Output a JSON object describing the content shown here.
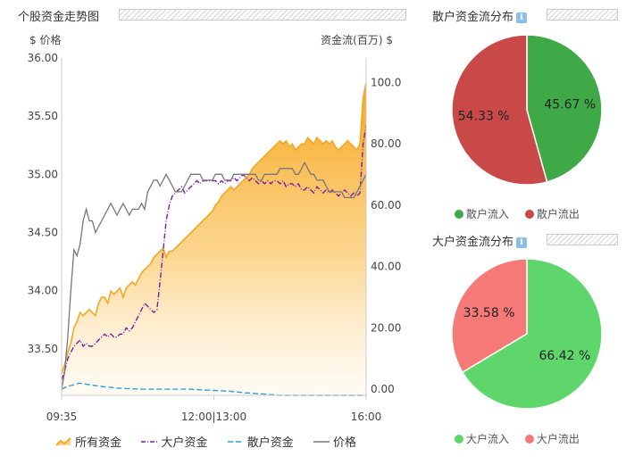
{
  "headers": {
    "main": "个股资金走势图",
    "pie1": "散户资金流分布",
    "pie2": "大户资金流分布",
    "info_glyph": "i"
  },
  "chart_data": [
    {
      "type": "area",
      "ylabel_left": "$ 价格",
      "ylabel_right": "资金流(百万) $",
      "left_axis": {
        "min": 33.1,
        "max": 36.0,
        "ticks": [
          "36.00",
          "35.50",
          "35.00",
          "34.50",
          "34.00",
          "33.50"
        ],
        "tick_values": [
          36.0,
          35.5,
          35.0,
          34.5,
          34.0,
          33.5
        ]
      },
      "right_axis": {
        "min": -2,
        "max": 108,
        "ticks": [
          "100.00",
          "80.00",
          "60.00",
          "40.00",
          "20.00",
          "0.00"
        ],
        "tick_values": [
          100,
          80,
          60,
          40,
          20,
          0
        ]
      },
      "x_ticks": [
        "09:35",
        "12:00|13:00",
        "16:00"
      ],
      "x_tick_pos": [
        0,
        0.5,
        1
      ],
      "grid": false,
      "legend_position": "bottom",
      "series": [
        {
          "name": "所有资金",
          "axis": "right",
          "color": "#f5a623",
          "style": "area",
          "values": [
            5,
            8,
            12,
            15,
            20,
            22,
            25,
            24,
            25,
            26,
            25,
            24,
            28,
            30,
            30,
            28,
            32,
            31,
            32,
            33,
            30,
            33,
            34,
            35,
            34,
            36,
            38,
            39,
            40,
            41,
            43,
            44,
            45,
            46,
            43,
            45,
            45,
            46,
            47,
            48,
            49,
            50,
            51,
            52,
            53,
            54,
            55,
            56,
            57,
            58,
            60,
            61,
            63,
            64,
            65,
            66,
            65,
            66,
            67,
            68,
            69,
            70,
            72,
            73,
            74,
            75,
            76,
            77,
            78,
            79,
            80,
            81,
            80,
            81,
            79,
            80,
            78,
            79,
            80,
            80,
            82,
            81,
            80,
            82,
            81,
            80,
            81,
            80,
            81,
            79,
            78,
            79,
            80,
            81,
            80,
            79,
            78,
            80,
            95,
            100
          ]
        },
        {
          "name": "大户资金",
          "axis": "right",
          "color": "#7b1fa2",
          "style": "dashdot",
          "values": [
            3,
            6,
            10,
            12,
            14,
            15,
            16,
            14,
            15,
            14,
            14,
            15,
            16,
            17,
            18,
            17,
            18,
            17,
            17,
            18,
            18,
            20,
            19,
            20,
            22,
            24,
            26,
            28,
            27,
            26,
            25,
            26,
            35,
            45,
            55,
            60,
            63,
            64,
            65,
            66,
            64,
            65,
            66,
            67,
            68,
            67,
            68,
            68,
            68,
            68,
            68,
            67,
            68,
            67,
            68,
            68,
            69,
            68,
            69,
            70,
            69,
            68,
            69,
            68,
            67,
            68,
            67,
            68,
            67,
            68,
            68,
            67,
            68,
            66,
            67,
            67,
            66,
            67,
            65,
            65,
            66,
            65,
            64,
            66,
            65,
            64,
            65,
            64,
            65,
            64,
            63,
            64,
            65,
            64,
            63,
            64,
            63,
            64,
            80,
            86
          ]
        },
        {
          "name": "散户资金",
          "axis": "right",
          "color": "#29a3d6",
          "style": "dashed",
          "values": [
            0,
            0.5,
            1,
            1.2,
            1.5,
            1.8,
            2,
            1.8,
            1.6,
            1.5,
            1.3,
            1.2,
            1,
            0.9,
            0.8,
            0.7,
            0.6,
            0.5,
            0.4,
            0.3,
            0.3,
            0.2,
            0.2,
            0.1,
            0.1,
            0.1,
            0,
            0,
            0,
            0,
            0,
            0,
            0,
            0,
            0,
            0,
            0,
            0,
            0,
            0,
            0,
            0,
            0,
            -0.1,
            -0.1,
            -0.2,
            -0.2,
            -0.3,
            -0.3,
            -0.4,
            -0.4,
            -0.5,
            -0.5,
            -0.6,
            -0.6,
            -0.7,
            -0.8,
            -0.9,
            -1,
            -1.1,
            -1.2,
            -1.2,
            -1.3,
            -1.4,
            -1.5,
            -1.5,
            -1.6,
            -1.7,
            -1.8,
            -1.8,
            -1.9,
            -2,
            -2,
            -2,
            -2,
            -2,
            -2,
            -2,
            -2,
            -2,
            -2,
            -2,
            -2,
            -2,
            -2,
            -2,
            -2,
            -2,
            -2,
            -2,
            -2,
            -2,
            -2,
            -2,
            -2,
            -2,
            -2,
            -2,
            -2,
            -2
          ]
        },
        {
          "name": "价格",
          "axis": "left",
          "color": "#777777",
          "style": "solid",
          "values": [
            33.15,
            33.3,
            33.6,
            34.0,
            34.35,
            34.3,
            34.4,
            34.6,
            34.7,
            34.6,
            34.6,
            34.5,
            34.55,
            34.6,
            34.65,
            34.7,
            34.75,
            34.7,
            34.65,
            34.7,
            34.75,
            34.7,
            34.65,
            34.7,
            34.7,
            34.7,
            34.75,
            34.7,
            34.85,
            34.9,
            34.95,
            34.95,
            34.9,
            34.95,
            35.0,
            34.95,
            34.9,
            34.85,
            34.85,
            34.85,
            34.9,
            34.95,
            35.0,
            35.0,
            35.0,
            35.0,
            34.95,
            34.95,
            34.95,
            34.95,
            35.0,
            35.0,
            35.0,
            34.95,
            34.95,
            34.95,
            35.0,
            35.0,
            35.0,
            35.0,
            35.0,
            35.0,
            35.0,
            35.0,
            34.95,
            34.95,
            35.0,
            35.0,
            35.0,
            35.0,
            35.0,
            35.05,
            35.05,
            35.05,
            35.05,
            35.05,
            35.0,
            35.0,
            35.05,
            35.1,
            35.05,
            35.0,
            35.0,
            34.95,
            34.95,
            34.95,
            34.9,
            34.85,
            34.85,
            34.85,
            34.85,
            34.85,
            34.8,
            34.8,
            34.8,
            34.8,
            34.85,
            34.9,
            34.95,
            35.0
          ]
        }
      ]
    },
    {
      "type": "pie",
      "slices": [
        {
          "label": "散户流入",
          "value": 45.67,
          "text": "45.67 %",
          "color": "#3fa847"
        },
        {
          "label": "散户流出",
          "value": 54.33,
          "text": "54.33 %",
          "color": "#c94848"
        }
      ]
    },
    {
      "type": "pie",
      "slices": [
        {
          "label": "大户流入",
          "value": 66.42,
          "text": "66.42 %",
          "color": "#5ed66b"
        },
        {
          "label": "大户流出",
          "value": 33.58,
          "text": "33.58 %",
          "color": "#f57a77"
        }
      ]
    }
  ]
}
